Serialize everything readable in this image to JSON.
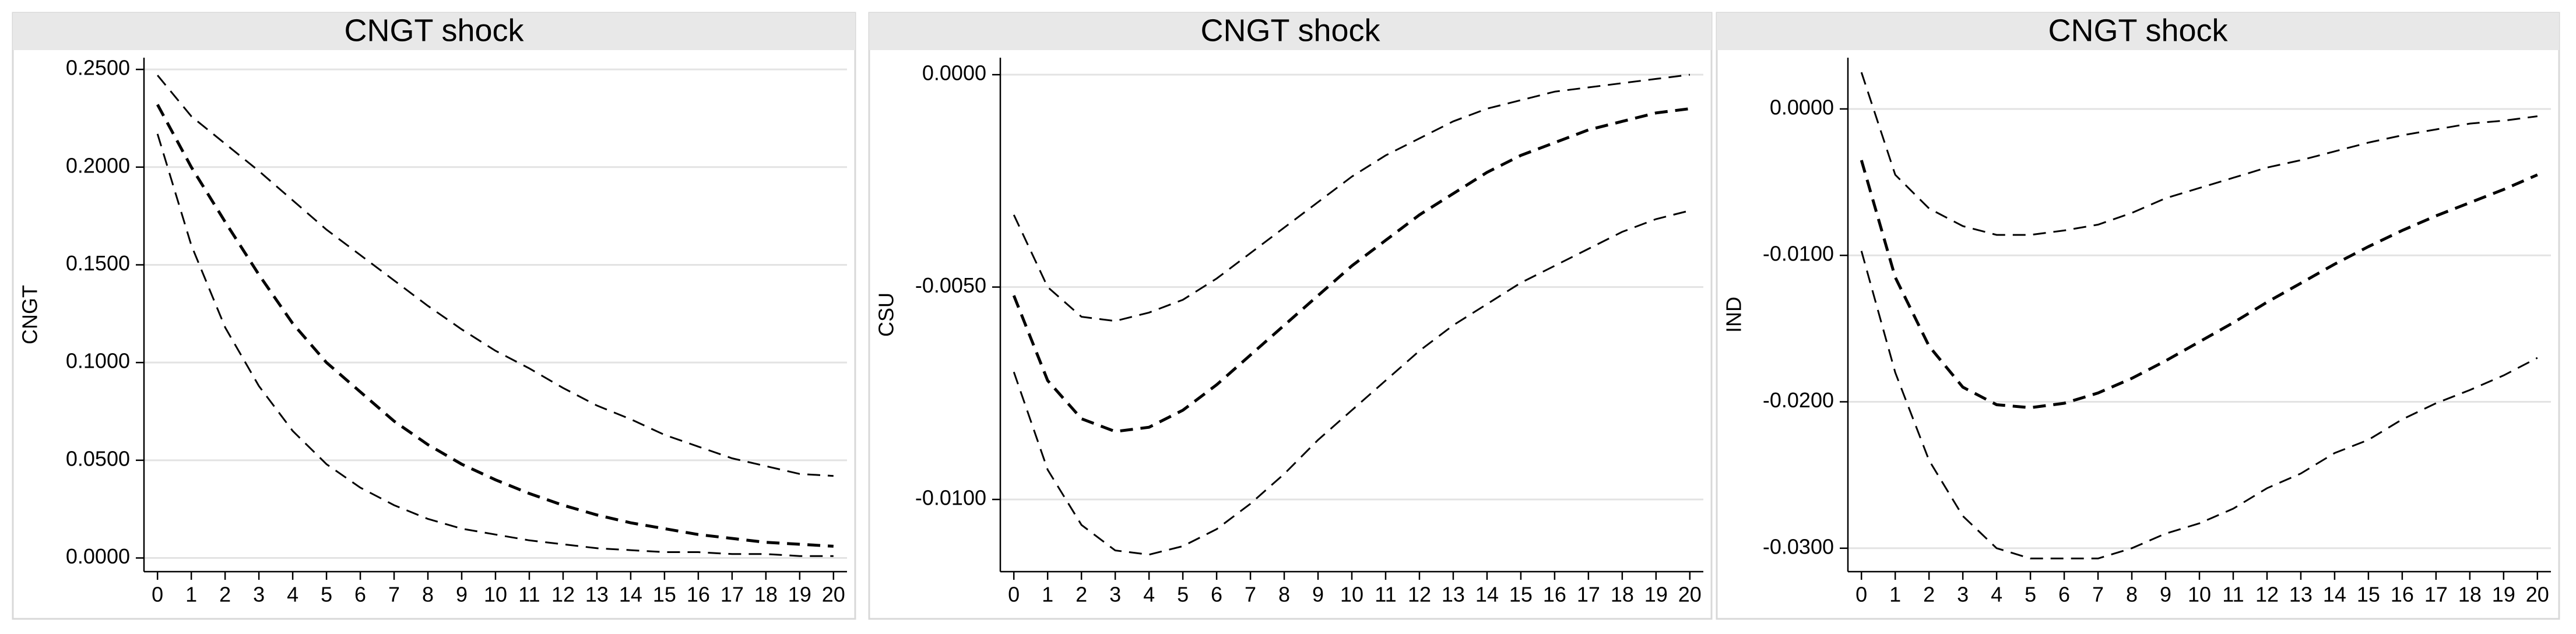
{
  "chart_data": [
    {
      "type": "line",
      "title": "CNGT shock",
      "y_label": "CNGT",
      "x": [
        0,
        1,
        2,
        3,
        4,
        5,
        6,
        7,
        8,
        9,
        10,
        11,
        12,
        13,
        14,
        15,
        16,
        17,
        18,
        19,
        20
      ],
      "xlim": [
        -0.4,
        20.4
      ],
      "xticks": [
        0,
        1,
        2,
        3,
        4,
        5,
        6,
        7,
        8,
        9,
        10,
        11,
        12,
        13,
        14,
        15,
        16,
        17,
        18,
        19,
        20
      ],
      "ylim": [
        -0.007,
        0.256
      ],
      "yticks": [
        {
          "value": 0,
          "label": "0.0000"
        },
        {
          "value": 0.05,
          "label": "0.0500"
        },
        {
          "value": 0.1,
          "label": "0.1000"
        },
        {
          "value": 0.15,
          "label": "0.1500"
        },
        {
          "value": 0.2,
          "label": "0.2000"
        },
        {
          "value": 0.25,
          "label": "0.2500"
        }
      ],
      "grid": true,
      "series": [
        {
          "color": "#000000",
          "width": 3,
          "values": [
            0.247,
            0.226,
            0.212,
            0.198,
            0.183,
            0.168,
            0.155,
            0.142,
            0.129,
            0.117,
            0.106,
            0.097,
            0.087,
            0.078,
            0.071,
            0.063,
            0.057,
            0.051,
            0.047,
            0.043,
            0.042
          ]
        },
        {
          "color": "#000000",
          "width": 5,
          "values": [
            0.232,
            0.2,
            0.172,
            0.145,
            0.12,
            0.1,
            0.085,
            0.07,
            0.058,
            0.048,
            0.04,
            0.033,
            0.027,
            0.022,
            0.018,
            0.015,
            0.012,
            0.01,
            0.008,
            0.007,
            0.006
          ]
        },
        {
          "color": "#000000",
          "width": 3,
          "values": [
            0.217,
            0.16,
            0.118,
            0.088,
            0.065,
            0.048,
            0.036,
            0.027,
            0.02,
            0.015,
            0.012,
            0.009,
            0.007,
            0.005,
            0.004,
            0.003,
            0.003,
            0.002,
            0.002,
            0.001,
            0.001
          ]
        }
      ]
    },
    {
      "type": "line",
      "title": "CNGT shock",
      "y_label": "CSU",
      "x": [
        0,
        1,
        2,
        3,
        4,
        5,
        6,
        7,
        8,
        9,
        10,
        11,
        12,
        13,
        14,
        15,
        16,
        17,
        18,
        19,
        20
      ],
      "xlim": [
        -0.4,
        20.4
      ],
      "xticks": [
        0,
        1,
        2,
        3,
        4,
        5,
        6,
        7,
        8,
        9,
        10,
        11,
        12,
        13,
        14,
        15,
        16,
        17,
        18,
        19,
        20
      ],
      "ylim": [
        -0.0117,
        0.0004
      ],
      "yticks": [
        {
          "value": -0.01,
          "label": "-0.0100"
        },
        {
          "value": -0.005,
          "label": "-0.0050"
        },
        {
          "value": 0,
          "label": "0.0000"
        }
      ],
      "grid": true,
      "series": [
        {
          "color": "#000000",
          "width": 3,
          "values": [
            -0.0033,
            -0.005,
            -0.0057,
            -0.0058,
            -0.0056,
            -0.0053,
            -0.0048,
            -0.0042,
            -0.0036,
            -0.003,
            -0.0024,
            -0.0019,
            -0.0015,
            -0.0011,
            -0.0008,
            -0.0006,
            -0.0004,
            -0.0003,
            -0.0002,
            -0.0001,
            0.0
          ]
        },
        {
          "color": "#000000",
          "width": 5,
          "values": [
            -0.0052,
            -0.0072,
            -0.0081,
            -0.0084,
            -0.0083,
            -0.0079,
            -0.0073,
            -0.0066,
            -0.0059,
            -0.0052,
            -0.0045,
            -0.0039,
            -0.0033,
            -0.0028,
            -0.0023,
            -0.0019,
            -0.0016,
            -0.0013,
            -0.0011,
            -0.0009,
            -0.0008
          ]
        },
        {
          "color": "#000000",
          "width": 3,
          "values": [
            -0.007,
            -0.0093,
            -0.0106,
            -0.0112,
            -0.0113,
            -0.0111,
            -0.0107,
            -0.0101,
            -0.0094,
            -0.0086,
            -0.0079,
            -0.0072,
            -0.0065,
            -0.0059,
            -0.0054,
            -0.0049,
            -0.0045,
            -0.0041,
            -0.0037,
            -0.0034,
            -0.0032
          ]
        }
      ]
    },
    {
      "type": "line",
      "title": "CNGT shock",
      "y_label": "IND",
      "x": [
        0,
        1,
        2,
        3,
        4,
        5,
        6,
        7,
        8,
        9,
        10,
        11,
        12,
        13,
        14,
        15,
        16,
        17,
        18,
        19,
        20
      ],
      "xlim": [
        -0.4,
        20.4
      ],
      "xticks": [
        0,
        1,
        2,
        3,
        4,
        5,
        6,
        7,
        8,
        9,
        10,
        11,
        12,
        13,
        14,
        15,
        16,
        17,
        18,
        19,
        20
      ],
      "ylim": [
        -0.0316,
        0.0035
      ],
      "yticks": [
        {
          "value": -0.03,
          "label": "-0.0300"
        },
        {
          "value": -0.02,
          "label": "-0.0200"
        },
        {
          "value": -0.01,
          "label": "-0.0100"
        },
        {
          "value": 0,
          "label": "0.0000"
        }
      ],
      "grid": true,
      "series": [
        {
          "color": "#000000",
          "width": 3,
          "values": [
            0.0025,
            -0.0045,
            -0.0068,
            -0.008,
            -0.0086,
            -0.0086,
            -0.0083,
            -0.0079,
            -0.0071,
            -0.0061,
            -0.0054,
            -0.0047,
            -0.004,
            -0.0035,
            -0.0029,
            -0.0023,
            -0.0018,
            -0.0014,
            -0.001,
            -0.0008,
            -0.0005
          ]
        },
        {
          "color": "#000000",
          "width": 5,
          "values": [
            -0.0035,
            -0.0115,
            -0.0162,
            -0.019,
            -0.0202,
            -0.0204,
            -0.0201,
            -0.0194,
            -0.0184,
            -0.0172,
            -0.0159,
            -0.0146,
            -0.0132,
            -0.0119,
            -0.0106,
            -0.0094,
            -0.0083,
            -0.0073,
            -0.0064,
            -0.0055,
            -0.0045
          ]
        },
        {
          "color": "#000000",
          "width": 3,
          "values": [
            -0.0097,
            -0.018,
            -0.024,
            -0.0278,
            -0.03,
            -0.0307,
            -0.0307,
            -0.0307,
            -0.03,
            -0.029,
            -0.0283,
            -0.0273,
            -0.0259,
            -0.0249,
            -0.0235,
            -0.0226,
            -0.0212,
            -0.0201,
            -0.0192,
            -0.0182,
            -0.017
          ]
        }
      ]
    }
  ]
}
